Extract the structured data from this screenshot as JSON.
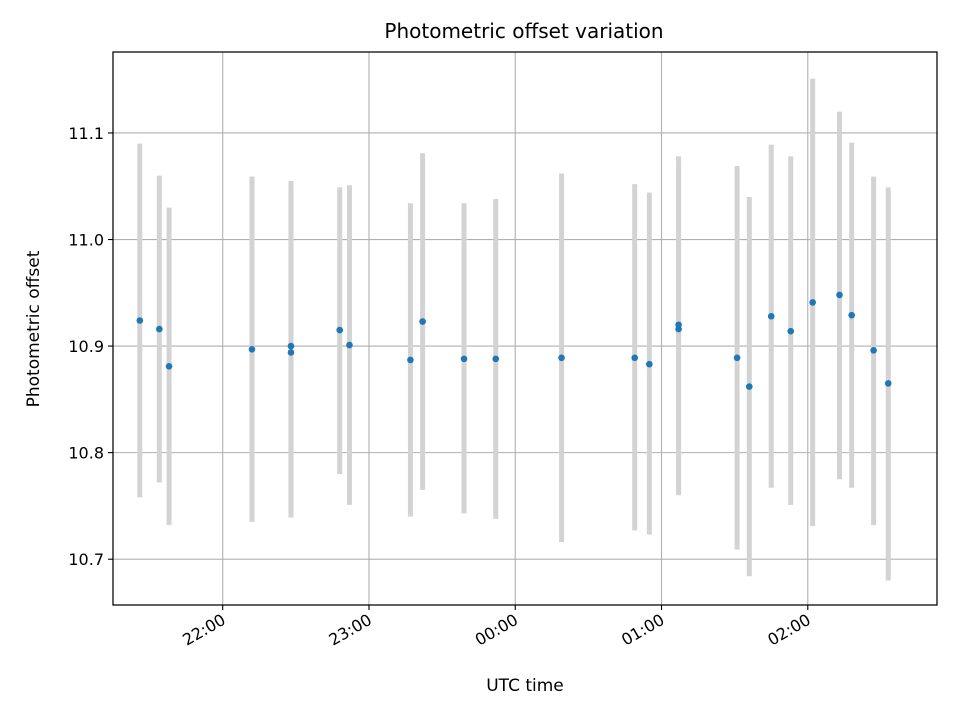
{
  "chart_data": {
    "type": "scatter",
    "title": "Photometric offset variation",
    "xlabel": "UTC time",
    "ylabel": "Photometric offset",
    "x_axis_type": "time",
    "x_tick_labels": [
      "22:00",
      "23:00",
      "00:00",
      "01:00",
      "02:00"
    ],
    "x_tick_label_rotation_deg": 30,
    "y_ticks": [
      10.7,
      10.8,
      10.9,
      11.0,
      11.1
    ],
    "y_tick_labels": [
      "10.7",
      "10.8",
      "10.9",
      "11.0",
      "11.1"
    ],
    "ylim": [
      10.657,
      11.176
    ],
    "xlim": [
      "21:15",
      "02:53"
    ],
    "grid": true,
    "legend": "none",
    "colors": {
      "points": "#1f77b4",
      "errorbars": "#d3d3d3",
      "grid": "#b0b0b0",
      "axes": "#000000"
    },
    "points": [
      {
        "time": "21:26",
        "y": 10.924,
        "lo": 10.758,
        "hi": 11.09
      },
      {
        "time": "21:34",
        "y": 10.916,
        "lo": 10.772,
        "hi": 11.06
      },
      {
        "time": "21:38",
        "y": 10.881,
        "lo": 10.732,
        "hi": 11.03
      },
      {
        "time": "22:12",
        "y": 10.897,
        "lo": 10.735,
        "hi": 11.059
      },
      {
        "time": "22:28",
        "y": 10.9,
        "lo": 10.744,
        "hi": 11.055
      },
      {
        "time": "22:28",
        "y": 10.894,
        "lo": 10.739,
        "hi": 11.049
      },
      {
        "time": "22:48",
        "y": 10.915,
        "lo": 10.78,
        "hi": 11.049
      },
      {
        "time": "22:52",
        "y": 10.901,
        "lo": 10.751,
        "hi": 11.051
      },
      {
        "time": "23:17",
        "y": 10.887,
        "lo": 10.74,
        "hi": 11.034
      },
      {
        "time": "23:22",
        "y": 10.923,
        "lo": 10.765,
        "hi": 11.081
      },
      {
        "time": "23:39",
        "y": 10.888,
        "lo": 10.743,
        "hi": 11.034
      },
      {
        "time": "23:52",
        "y": 10.888,
        "lo": 10.738,
        "hi": 11.038
      },
      {
        "time": "00:19",
        "y": 10.889,
        "lo": 10.716,
        "hi": 11.062
      },
      {
        "time": "00:49",
        "y": 10.889,
        "lo": 10.727,
        "hi": 11.052
      },
      {
        "time": "00:55",
        "y": 10.883,
        "lo": 10.723,
        "hi": 11.044
      },
      {
        "time": "01:07",
        "y": 10.92,
        "lo": 10.762,
        "hi": 11.078
      },
      {
        "time": "01:07",
        "y": 10.916,
        "lo": 10.76,
        "hi": 11.068
      },
      {
        "time": "01:31",
        "y": 10.889,
        "lo": 10.709,
        "hi": 11.069
      },
      {
        "time": "01:36",
        "y": 10.862,
        "lo": 10.684,
        "hi": 11.04
      },
      {
        "time": "01:45",
        "y": 10.928,
        "lo": 10.767,
        "hi": 11.089
      },
      {
        "time": "01:53",
        "y": 10.914,
        "lo": 10.751,
        "hi": 11.078
      },
      {
        "time": "02:02",
        "y": 10.941,
        "lo": 10.731,
        "hi": 11.151
      },
      {
        "time": "02:13",
        "y": 10.948,
        "lo": 10.775,
        "hi": 11.12
      },
      {
        "time": "02:18",
        "y": 10.929,
        "lo": 10.767,
        "hi": 11.091
      },
      {
        "time": "02:27",
        "y": 10.896,
        "lo": 10.732,
        "hi": 11.059
      },
      {
        "time": "02:33",
        "y": 10.865,
        "lo": 10.68,
        "hi": 11.049
      }
    ]
  }
}
